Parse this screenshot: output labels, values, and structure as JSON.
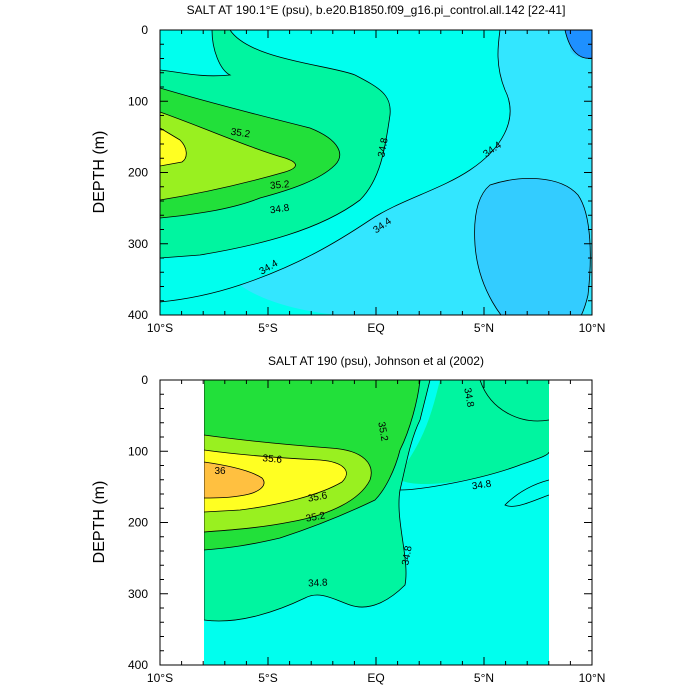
{
  "colors": {
    "lt32": "#1E90FF",
    "s32_34": "#33CCFF",
    "s34_344": "#33E6FF",
    "s344_348": "#00FFEE",
    "s348_352": "#00F5A0",
    "s352_356": "#22E03A",
    "s356_36": "#99F020",
    "s36_364": "#FFFF22",
    "gt364": "#FFC040",
    "line": "#000000"
  },
  "chart_data": [
    {
      "type": "contour",
      "title": "SALT AT 190.1°E (psu), b.e20.B1850.f09_g16.pi_control.all.142 [22-41]",
      "ylabel": "DEPTH (m)",
      "xlabel": "",
      "x_ticks": [
        "10°S",
        "5°S",
        "EQ",
        "5°N",
        "10°N"
      ],
      "x_range": [
        -10,
        10
      ],
      "y_ticks": [
        0,
        100,
        200,
        300,
        400
      ],
      "y_range": [
        0,
        400
      ],
      "contour_labels": [
        "35.2",
        "35.2",
        "34.8",
        "34.8",
        "34.4",
        "34.4",
        "34.4"
      ],
      "contour_levels": [
        34.0,
        34.4,
        34.8,
        35.2,
        35.6
      ]
    },
    {
      "type": "contour",
      "title": "SALT AT 190 (psu), Johnson et al (2002)",
      "ylabel": "DEPTH (m)",
      "xlabel": "",
      "x_ticks": [
        "10°S",
        "5°S",
        "EQ",
        "5°N",
        "10°N"
      ],
      "x_range": [
        -10,
        10
      ],
      "y_ticks": [
        0,
        100,
        200,
        300,
        400
      ],
      "y_range": [
        0,
        400
      ],
      "data_x_range": [
        -8,
        8
      ],
      "contour_labels": [
        "35.6",
        "36",
        "35.6",
        "35.2",
        "35.2",
        "34.8",
        "34.8",
        "34.8",
        "34.8"
      ],
      "contour_levels": [
        34.8,
        35.2,
        35.6,
        36.0
      ]
    }
  ]
}
